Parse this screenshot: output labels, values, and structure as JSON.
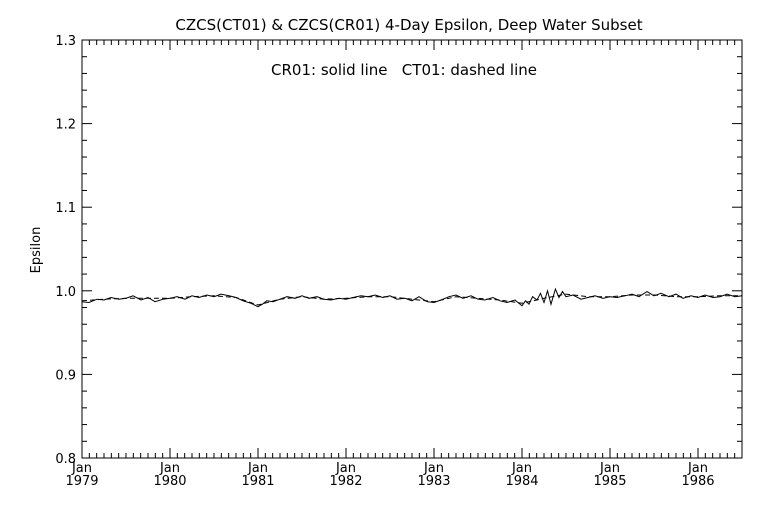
{
  "chart_data": {
    "type": "line",
    "title": "CZCS(CT01) & CZCS(CR01) 4-Day Epsilon, Deep Water Subset",
    "annotation": "CR01: solid line   CT01: dashed line",
    "xlabel": "",
    "ylabel": "Epsilon",
    "xlim": [
      1979.0,
      1986.5
    ],
    "ylim": [
      0.8,
      1.3
    ],
    "grid": false,
    "x_ticks": [
      {
        "month": "Jan",
        "year": "1979",
        "value": 1979.0
      },
      {
        "month": "Jan",
        "year": "1980",
        "value": 1980.0
      },
      {
        "month": "Jan",
        "year": "1981",
        "value": 1981.0
      },
      {
        "month": "Jan",
        "year": "1982",
        "value": 1982.0
      },
      {
        "month": "Jan",
        "year": "1983",
        "value": 1983.0
      },
      {
        "month": "Jan",
        "year": "1984",
        "value": 1984.0
      },
      {
        "month": "Jan",
        "year": "1985",
        "value": 1985.0
      },
      {
        "month": "Jan",
        "year": "1986",
        "value": 1986.0
      }
    ],
    "y_ticks": [
      {
        "label": "0.8",
        "value": 0.8
      },
      {
        "label": "0.9",
        "value": 0.9
      },
      {
        "label": "1.0",
        "value": 1.0
      },
      {
        "label": "1.1",
        "value": 1.1
      },
      {
        "label": "1.2",
        "value": 1.2
      },
      {
        "label": "1.3",
        "value": 1.3
      }
    ],
    "series": [
      {
        "style": "solid",
        "color": "#000000",
        "x": [
          1979.0,
          1979.08,
          1979.17,
          1979.25,
          1979.33,
          1979.42,
          1979.5,
          1979.58,
          1979.67,
          1979.75,
          1979.83,
          1979.92,
          1980.0,
          1980.08,
          1980.17,
          1980.25,
          1980.33,
          1980.42,
          1980.5,
          1980.58,
          1980.67,
          1980.75,
          1980.83,
          1980.92,
          1981.0,
          1981.05,
          1981.1,
          1981.17,
          1981.25,
          1981.33,
          1981.42,
          1981.5,
          1981.58,
          1981.67,
          1981.75,
          1981.83,
          1981.92,
          1982.0,
          1982.08,
          1982.17,
          1982.25,
          1982.33,
          1982.42,
          1982.5,
          1982.58,
          1982.67,
          1982.75,
          1982.83,
          1982.92,
          1983.0,
          1983.08,
          1983.17,
          1983.25,
          1983.33,
          1983.42,
          1983.5,
          1983.58,
          1983.67,
          1983.75,
          1983.83,
          1983.92,
          1984.0,
          1984.04,
          1984.08,
          1984.12,
          1984.17,
          1984.21,
          1984.25,
          1984.29,
          1984.33,
          1984.38,
          1984.42,
          1984.46,
          1984.5,
          1984.58,
          1984.67,
          1984.75,
          1984.83,
          1984.92,
          1985.0,
          1985.08,
          1985.17,
          1985.25,
          1985.33,
          1985.42,
          1985.5,
          1985.58,
          1985.67,
          1985.75,
          1985.83,
          1985.92,
          1986.0,
          1986.08,
          1986.17,
          1986.25,
          1986.33,
          1986.42,
          1986.5
        ],
        "y": [
          0.987,
          0.986,
          0.99,
          0.989,
          0.992,
          0.99,
          0.991,
          0.994,
          0.989,
          0.992,
          0.987,
          0.99,
          0.991,
          0.993,
          0.99,
          0.994,
          0.992,
          0.995,
          0.993,
          0.996,
          0.994,
          0.992,
          0.988,
          0.985,
          0.981,
          0.984,
          0.988,
          0.987,
          0.99,
          0.993,
          0.991,
          0.994,
          0.991,
          0.993,
          0.99,
          0.989,
          0.991,
          0.99,
          0.992,
          0.994,
          0.993,
          0.995,
          0.992,
          0.994,
          0.99,
          0.991,
          0.988,
          0.993,
          0.987,
          0.986,
          0.989,
          0.993,
          0.995,
          0.991,
          0.994,
          0.99,
          0.989,
          0.992,
          0.988,
          0.986,
          0.989,
          0.982,
          0.988,
          0.984,
          0.993,
          0.989,
          0.997,
          0.986,
          1.0,
          0.984,
          1.002,
          0.992,
          0.999,
          0.993,
          0.995,
          0.99,
          0.992,
          0.994,
          0.991,
          0.993,
          0.992,
          0.994,
          0.996,
          0.993,
          0.999,
          0.994,
          0.997,
          0.993,
          0.996,
          0.991,
          0.994,
          0.992,
          0.995,
          0.992,
          0.993,
          0.996,
          0.993,
          0.994
        ]
      },
      {
        "style": "dashed",
        "color": "#000000",
        "x": [
          1979.0,
          1979.25,
          1979.5,
          1979.75,
          1980.0,
          1980.25,
          1980.5,
          1980.75,
          1981.0,
          1981.25,
          1981.5,
          1981.75,
          1982.0,
          1982.25,
          1982.5,
          1982.75,
          1983.0,
          1983.25,
          1983.5,
          1983.75,
          1984.0,
          1984.25,
          1984.5,
          1984.75,
          1985.0,
          1985.25,
          1985.5,
          1985.75,
          1986.0,
          1986.25,
          1986.5
        ],
        "y": [
          0.988,
          0.99,
          0.991,
          0.991,
          0.991,
          0.993,
          0.994,
          0.992,
          0.983,
          0.99,
          0.993,
          0.99,
          0.991,
          0.993,
          0.993,
          0.99,
          0.987,
          0.993,
          0.991,
          0.989,
          0.985,
          0.991,
          0.996,
          0.993,
          0.993,
          0.995,
          0.995,
          0.993,
          0.993,
          0.994,
          0.994
        ]
      }
    ]
  }
}
